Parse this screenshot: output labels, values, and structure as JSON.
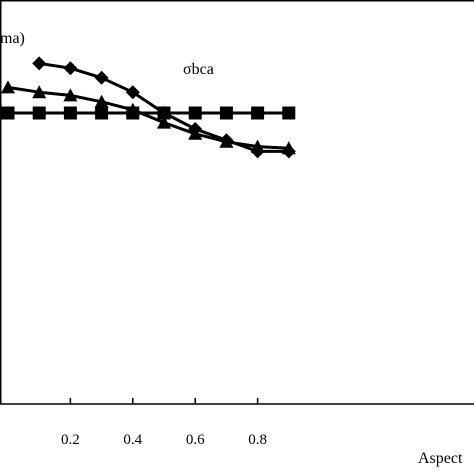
{
  "chart_data": {
    "type": "line",
    "xlabel": "Aspect",
    "ylabel_fragment": "ma)",
    "annotation": "σbca",
    "xlim": [
      0.0,
      0.9
    ],
    "x_ticks": [
      0.2,
      0.4,
      0.6,
      0.8
    ],
    "x_tick_labels": [
      "0.2",
      "0.4",
      "0.6",
      "0.8"
    ],
    "grid": false,
    "series": [
      {
        "marker": "diamond",
        "x": [
          0.1,
          0.2,
          0.3,
          0.4,
          0.5,
          0.6,
          0.7,
          0.8,
          0.9
        ],
        "y": [
          1.38,
          1.365,
          1.335,
          1.29,
          1.225,
          1.175,
          1.14,
          1.105,
          1.105
        ]
      },
      {
        "marker": "triangle",
        "x": [
          0.0,
          0.1,
          0.2,
          0.3,
          0.4,
          0.5,
          0.6,
          0.7,
          0.8,
          0.9
        ],
        "y": [
          1.305,
          1.29,
          1.28,
          1.26,
          1.235,
          1.195,
          1.16,
          1.135,
          1.12,
          1.115
        ]
      },
      {
        "marker": "square",
        "x": [
          0.0,
          0.1,
          0.2,
          0.3,
          0.4,
          0.5,
          0.6,
          0.7,
          0.8,
          0.9
        ],
        "y": [
          1.225,
          1.225,
          1.225,
          1.225,
          1.225,
          1.225,
          1.225,
          1.225,
          1.225,
          1.225
        ]
      }
    ]
  }
}
